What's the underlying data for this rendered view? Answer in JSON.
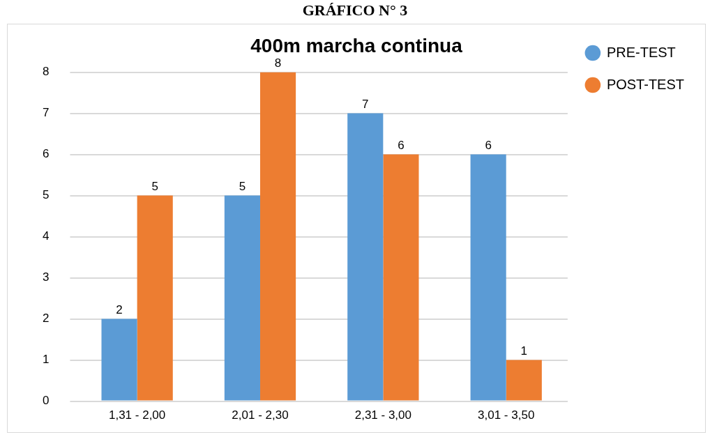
{
  "chart_data": {
    "type": "bar",
    "title": "400m marcha continua",
    "annotations": [
      "GRÁFICO N° 3"
    ],
    "categories": [
      "1,31 - 2,00",
      "2,01 - 2,30",
      "2,31 - 3,00",
      "3,01 - 3,50"
    ],
    "series": [
      {
        "name": "PRE-TEST",
        "color": "#5b9bd5",
        "values": [
          2,
          5,
          7,
          6
        ]
      },
      {
        "name": "POST-TEST",
        "color": "#ed7d31",
        "values": [
          5,
          8,
          6,
          1
        ]
      }
    ],
    "ylim": [
      0,
      8
    ],
    "yticks": [
      0,
      1,
      2,
      3,
      4,
      5,
      6,
      7,
      8
    ],
    "grid": "y",
    "legend": "top right",
    "data_labels": true
  }
}
